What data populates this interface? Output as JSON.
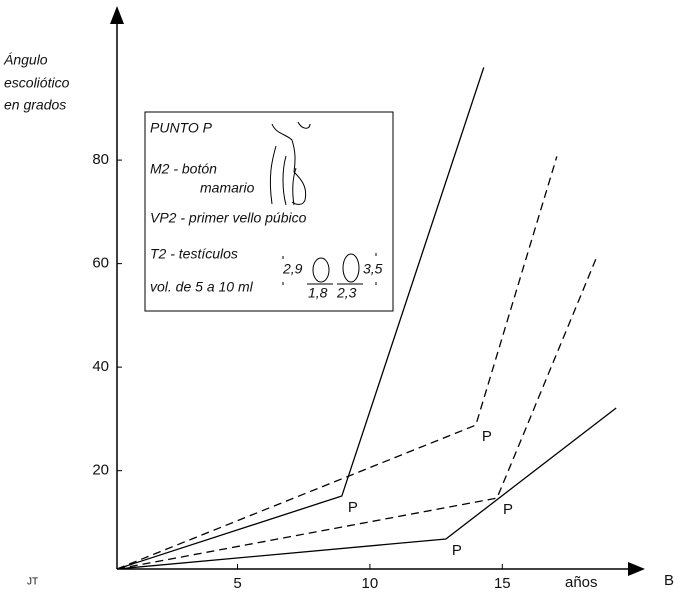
{
  "chart_data": {
    "type": "line",
    "y_label": [
      "Ángulo",
      "escoliótico",
      "en grados"
    ],
    "x_label": "años",
    "corner_left": "JT",
    "corner_right": "B",
    "xlim": [
      0.45,
      20.2
    ],
    "ylim": [
      1,
      109
    ],
    "xticks": [
      5,
      10,
      15
    ],
    "yticks": [
      20,
      40,
      60,
      80
    ],
    "grid": false,
    "series": [
      {
        "color": "#000000",
        "dash": false,
        "x": [
          0.45,
          8.94,
          14.3
        ],
        "values": [
          1,
          15.1,
          97.9
        ]
      },
      {
        "color": "#000000",
        "dash": true,
        "x": [
          0.45,
          14.0,
          17.06
        ],
        "values": [
          1,
          28.8,
          80.7
        ]
      },
      {
        "color": "#000000",
        "dash": true,
        "x": [
          0.45,
          14.8,
          18.6
        ],
        "values": [
          1,
          14.7,
          61.7
        ]
      },
      {
        "color": "#000000",
        "dash": false,
        "x": [
          0.45,
          12.87,
          19.3
        ],
        "values": [
          1,
          6.8,
          32.1
        ]
      }
    ],
    "annotations": [
      "P",
      "P",
      "P",
      "P"
    ],
    "inset": {
      "title": "PUNTO P",
      "m2": [
        "M2 - botón",
        "mamario"
      ],
      "vp2": "VP2 - primer vello púbico",
      "t2": "T2 - testículos",
      "vol": "vol. de 5 a 10 ml",
      "left_top": "2,9",
      "left_bottom": "1,8",
      "right_bottom": "2,3",
      "right_top": "3,5"
    }
  }
}
